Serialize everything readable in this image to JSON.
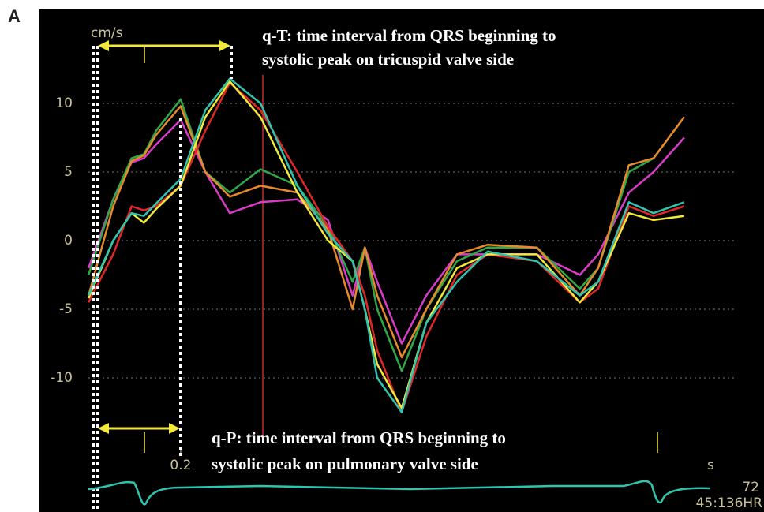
{
  "panel_label": "A",
  "chart_data": {
    "type": "line",
    "y_label": "cm/s",
    "x_label": "s",
    "annotations": [
      "q-T: time interval from QRS beginning to",
      "systolic peak on tricuspid valve side",
      "q-P: time interval from QRS beginning to",
      "systolic peak on pulmonary valve side"
    ],
    "heart_rate": "72",
    "status": "45:136HR",
    "x": [
      0.05,
      0.09,
      0.12,
      0.14,
      0.16,
      0.2,
      0.24,
      0.28,
      0.33,
      0.39,
      0.44,
      0.48,
      0.5,
      0.52,
      0.56,
      0.6,
      0.65,
      0.7,
      0.78,
      0.85,
      0.88,
      0.93,
      0.97,
      1.02
    ],
    "series": [
      {
        "color": "#d83cc8",
        "values": [
          -2,
          3,
          5.7,
          6,
          7,
          8.8,
          5,
          2,
          2.8,
          3,
          1.5,
          -4,
          -0.5,
          -3,
          -7.5,
          -4,
          -1,
          -1,
          -1,
          -2.5,
          -1,
          3.5,
          5,
          7.5
        ]
      },
      {
        "color": "#2fa84a",
        "values": [
          -2.5,
          3,
          6,
          6.3,
          8,
          10.3,
          5,
          3.5,
          5.2,
          4,
          1,
          -3,
          -0.5,
          -5,
          -9.5,
          -5,
          -1.5,
          -0.5,
          -0.5,
          -3.5,
          -2,
          5,
          6,
          9
        ]
      },
      {
        "color": "#e8892a",
        "values": [
          -4,
          2.5,
          5.8,
          6.2,
          7.7,
          9.8,
          5,
          3.2,
          4,
          3.5,
          0.8,
          -5,
          -0.5,
          -4,
          -8.5,
          -5,
          -1,
          -0.3,
          -0.5,
          -4,
          -2,
          5.5,
          6,
          9
        ]
      },
      {
        "color": "#e02828",
        "values": [
          -4.5,
          -1,
          2.5,
          2.2,
          2.5,
          4,
          8,
          11.5,
          9.5,
          5,
          1,
          -1.5,
          -4,
          -8,
          -12.5,
          -7,
          -2.5,
          -1,
          -1.5,
          -4.5,
          -3.5,
          2.5,
          1.8,
          2.5
        ]
      },
      {
        "color": "#f2e83a",
        "values": [
          -4.2,
          0,
          2,
          1.3,
          2.3,
          4,
          9,
          11.6,
          9,
          3.5,
          0,
          -1.5,
          -5,
          -9,
          -12.2,
          -6,
          -2,
          -1,
          -1,
          -4.5,
          -3,
          2,
          1.5,
          1.8
        ]
      },
      {
        "color": "#2ec4b0",
        "values": [
          -4,
          0,
          2,
          1.8,
          2.7,
          4.5,
          9.5,
          11.8,
          10,
          4,
          0.5,
          -1.5,
          -5,
          -10,
          -12.5,
          -6,
          -3,
          -0.8,
          -1.5,
          -4,
          -3,
          2.8,
          2,
          2.8
        ]
      }
    ],
    "xlim": [
      -0.03,
      1.15
    ],
    "xticks": [
      0.2
    ],
    "ylim": [
      -15,
      14
    ],
    "yticks": [
      10,
      5,
      0,
      -5,
      -10
    ],
    "grid": true
  }
}
